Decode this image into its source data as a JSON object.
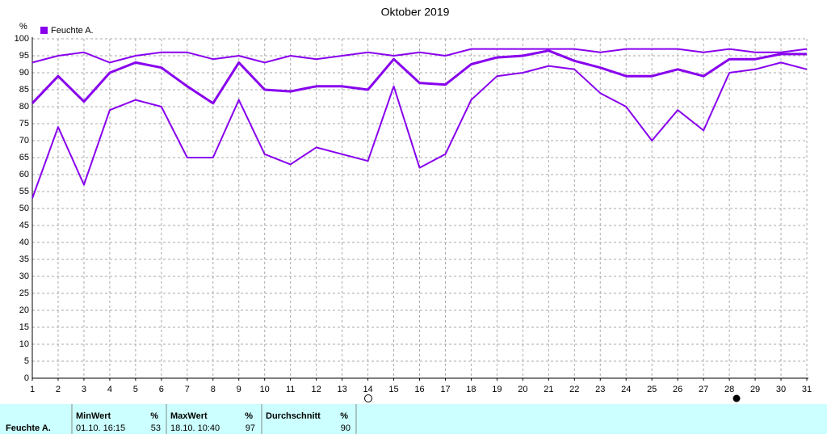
{
  "chart_data": {
    "type": "line",
    "title": "Oktober 2019",
    "ylabel": "%",
    "legend": "Feuchte A.",
    "x": [
      1,
      2,
      3,
      4,
      5,
      6,
      7,
      8,
      9,
      10,
      11,
      12,
      13,
      14,
      15,
      16,
      17,
      18,
      19,
      20,
      21,
      22,
      23,
      24,
      25,
      26,
      27,
      28,
      29,
      30,
      31
    ],
    "xlim": [
      1,
      31
    ],
    "xticks": [
      1,
      2,
      3,
      4,
      5,
      6,
      7,
      8,
      9,
      10,
      11,
      12,
      13,
      14,
      15,
      16,
      17,
      18,
      19,
      20,
      21,
      22,
      23,
      24,
      25,
      26,
      27,
      28,
      29,
      30,
      31
    ],
    "ylim": [
      0,
      100
    ],
    "yticks": [
      0,
      5,
      10,
      15,
      20,
      25,
      30,
      35,
      40,
      45,
      50,
      55,
      60,
      65,
      70,
      75,
      80,
      85,
      90,
      95,
      100
    ],
    "grid": true,
    "series": [
      {
        "color": "#8800ee",
        "linewidth": 2,
        "values": [
          93,
          95,
          96,
          93,
          95,
          96,
          96,
          94,
          95,
          93,
          95,
          94,
          95,
          96,
          95,
          96,
          95,
          97,
          97,
          97,
          97,
          97,
          96,
          97,
          97,
          97,
          96,
          97,
          96,
          96,
          97
        ]
      },
      {
        "color": "#8800ee",
        "linewidth": 3,
        "values": [
          81,
          89,
          81.5,
          90,
          93,
          91.5,
          86,
          81,
          93,
          85,
          84.5,
          86,
          86,
          85,
          94,
          87,
          86.5,
          92.5,
          94.5,
          95,
          96.5,
          93.5,
          91.5,
          89,
          89,
          91,
          89,
          94,
          94,
          95.5,
          95.5
        ]
      },
      {
        "color": "#8800ee",
        "linewidth": 2,
        "values": [
          53,
          74,
          57,
          79,
          82,
          80,
          65,
          65,
          82,
          66,
          63,
          68,
          66,
          64,
          86,
          62,
          66,
          82,
          89,
          90,
          92,
          91,
          84,
          80,
          70,
          79,
          73,
          90,
          91,
          93,
          91
        ]
      }
    ]
  },
  "stats": {
    "label": "Feuchte A.",
    "columns": [
      {
        "header": "MinWert",
        "unit": "%",
        "time": "01.10.  16:15",
        "value": "53"
      },
      {
        "header": "MaxWert",
        "unit": "%",
        "time": "18.10.  10:40",
        "value": "97"
      },
      {
        "header": "Durchschnitt",
        "unit": "%",
        "value": "90"
      }
    ]
  }
}
